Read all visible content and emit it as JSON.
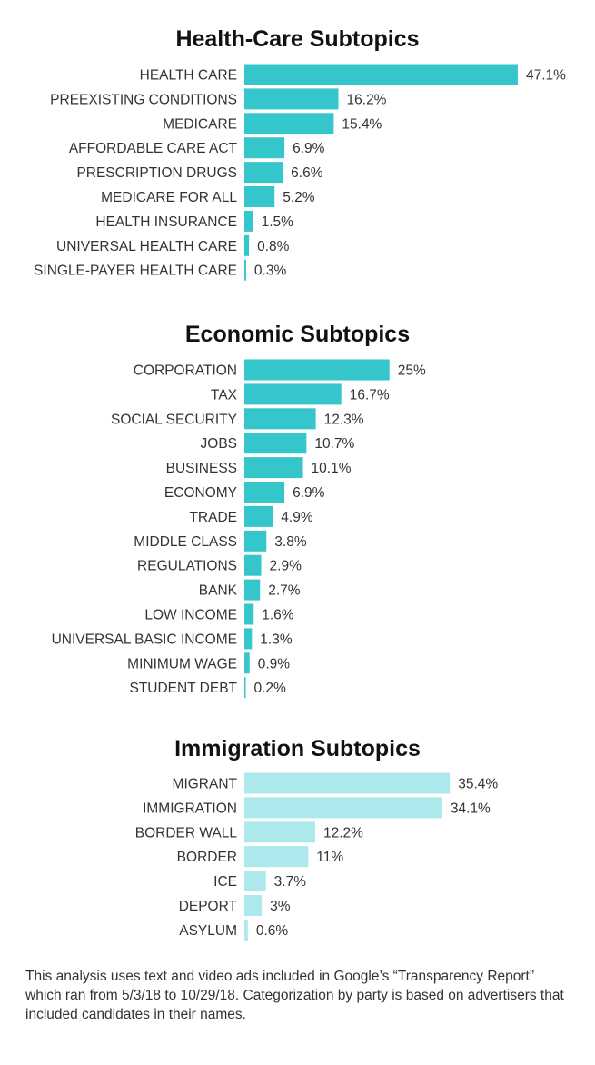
{
  "chart_data": [
    {
      "type": "bar",
      "orientation": "horizontal",
      "title": "Health-Care Subtopics",
      "categories": [
        "HEALTH CARE",
        "PREEXISTING CONDITIONS",
        "MEDICARE",
        "AFFORDABLE CARE ACT",
        "PRESCRIPTION DRUGS",
        "MEDICARE FOR ALL",
        "HEALTH INSURANCE",
        "UNIVERSAL HEALTH CARE",
        "SINGLE-PAYER HEALTH CARE"
      ],
      "values": [
        47.1,
        16.2,
        15.4,
        6.9,
        6.6,
        5.2,
        1.5,
        0.8,
        0.3
      ],
      "value_labels": [
        "47.1%",
        "16.2%",
        "15.4%",
        "6.9%",
        "6.6%",
        "5.2%",
        "1.5%",
        "0.8%",
        "0.3%"
      ],
      "color": "#35c6cc",
      "unit": "%"
    },
    {
      "type": "bar",
      "orientation": "horizontal",
      "title": "Economic Subtopics",
      "categories": [
        "CORPORATION",
        "TAX",
        "SOCIAL SECURITY",
        "JOBS",
        "BUSINESS",
        "ECONOMY",
        "TRADE",
        "MIDDLE CLASS",
        "REGULATIONS",
        "BANK",
        "LOW INCOME",
        "UNIVERSAL BASIC INCOME",
        "MINIMUM WAGE",
        "STUDENT DEBT"
      ],
      "values": [
        25,
        16.7,
        12.3,
        10.7,
        10.1,
        6.9,
        4.9,
        3.8,
        2.9,
        2.7,
        1.6,
        1.3,
        0.9,
        0.2
      ],
      "value_labels": [
        "25%",
        "16.7%",
        "12.3%",
        "10.7%",
        "10.1%",
        "6.9%",
        "4.9%",
        "3.8%",
        "2.9%",
        "2.7%",
        "1.6%",
        "1.3%",
        "0.9%",
        "0.2%"
      ],
      "color": "#35c6cc",
      "unit": "%"
    },
    {
      "type": "bar",
      "orientation": "horizontal",
      "title": "Immigration Subtopics",
      "categories": [
        "MIGRANT",
        "IMMIGRATION",
        "BORDER WALL",
        "BORDER",
        "ICE",
        "DEPORT",
        "ASYLUM"
      ],
      "values": [
        35.4,
        34.1,
        12.2,
        11,
        3.7,
        3,
        0.6
      ],
      "value_labels": [
        "35.4%",
        "34.1%",
        "12.2%",
        "11%",
        "3.7%",
        "3%",
        "0.6%"
      ],
      "color": "#ace8ec",
      "unit": "%"
    }
  ],
  "footnote": "This analysis uses text and video ads included in Google’s “Transparency Report” which ran from 5/3/18 to 10/29/18. Categorization by party is based on advertisers that included candidates in their names."
}
